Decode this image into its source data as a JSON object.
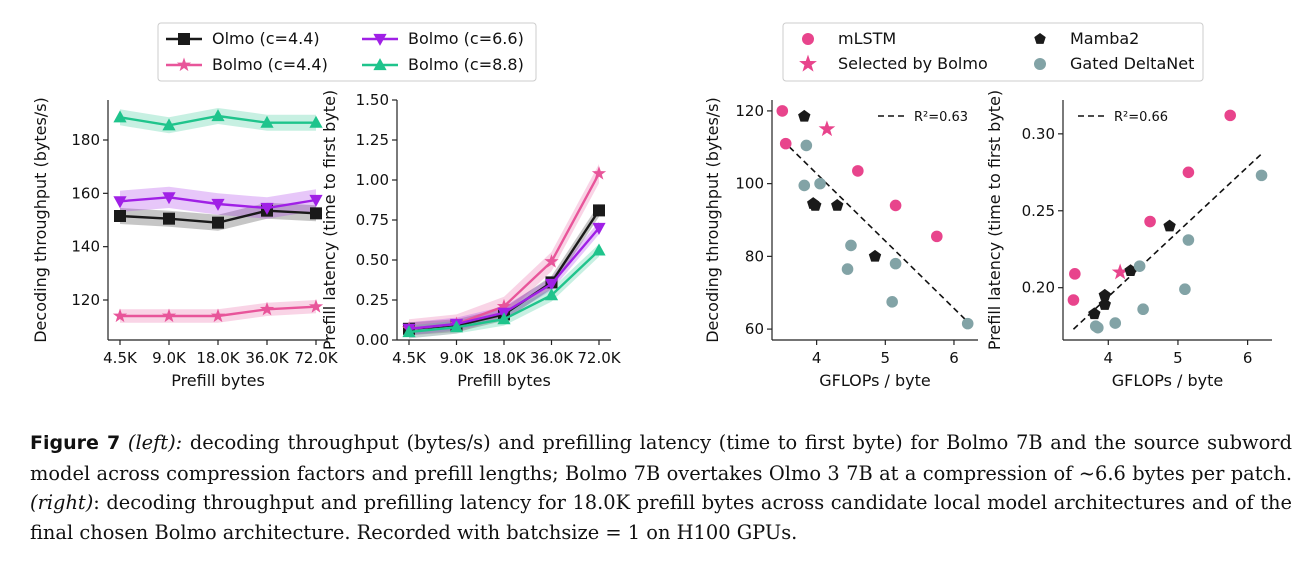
{
  "caption": {
    "label": "Figure 7",
    "left_tag": "(left):",
    "text1": " decoding throughput (bytes/s) and prefilling latency (time to first byte) for Bolmo 7B and the source subword model across compression factors and prefill lengths; Bolmo 7B overtakes Olmo 3 7B at a compression of ~6.6 bytes per patch. ",
    "right_tag": "(right)",
    "text2": ": decoding throughput and prefilling latency for 18.0K prefill bytes across candidate local model architectures and of the final chosen Bolmo architecture. Recorded with batchsize = 1 on H100 GPUs."
  },
  "colors": {
    "olmo": "#1a1a1a",
    "bolmo44": "#e8559a",
    "bolmo66": "#a020e6",
    "bolmo88": "#1fc48c",
    "mlstm": "#e8448c",
    "mamba2": "#1a1a1a",
    "gated": "#82a3a6"
  },
  "chart_data": [
    {
      "id": "throughput",
      "type": "line",
      "title": "",
      "xlabel": "Prefill bytes",
      "ylabel": "Decoding throughput (bytes/s)",
      "categories": [
        "4.5K",
        "9.0K",
        "18.0K",
        "36.0K",
        "72.0K"
      ],
      "ylim": [
        105,
        195
      ],
      "yticks": [
        120,
        140,
        160,
        180
      ],
      "legend": "top (shared with latency panel)",
      "series": [
        {
          "key": "olmo",
          "name": "Olmo (c=4.4)",
          "marker": "square",
          "values": [
            151.5,
            150.5,
            149,
            153.5,
            152.5
          ],
          "band": 3
        },
        {
          "key": "bolmo44",
          "name": "Bolmo (c=4.4)",
          "marker": "star",
          "values": [
            114,
            114,
            114,
            116.5,
            117.5
          ],
          "band": 2.5
        },
        {
          "key": "bolmo66",
          "name": "Bolmo (c=6.6)",
          "marker": "tri_down",
          "values": [
            157,
            158.5,
            156,
            154.5,
            157.5
          ],
          "band": 4
        },
        {
          "key": "bolmo88",
          "name": "Bolmo (c=8.8)",
          "marker": "tri_up",
          "values": [
            188.5,
            185.5,
            189,
            186.5,
            186.5
          ],
          "band": 3
        }
      ]
    },
    {
      "id": "latency",
      "type": "line",
      "xlabel": "Prefill bytes",
      "ylabel": "Prefill latency (time to first byte)",
      "categories": [
        "4.5K",
        "9.0K",
        "18.0K",
        "36.0K",
        "72.0K"
      ],
      "ylim": [
        0,
        1.5
      ],
      "yticks": [
        0.0,
        0.25,
        0.5,
        0.75,
        1.0,
        1.25,
        1.5
      ],
      "series": [
        {
          "key": "olmo",
          "name": "Olmo (c=4.4)",
          "marker": "square",
          "values": [
            0.07,
            0.09,
            0.16,
            0.36,
            0.81
          ],
          "band": 0.04
        },
        {
          "key": "bolmo44",
          "name": "Bolmo (c=4.4)",
          "marker": "star",
          "values": [
            0.07,
            0.1,
            0.21,
            0.49,
            1.04
          ],
          "band": 0.06
        },
        {
          "key": "bolmo66",
          "name": "Bolmo (c=6.6)",
          "marker": "tri_down",
          "values": [
            0.07,
            0.1,
            0.17,
            0.35,
            0.7
          ],
          "band": 0.04
        },
        {
          "key": "bolmo88",
          "name": "Bolmo (c=8.8)",
          "marker": "tri_up",
          "values": [
            0.05,
            0.08,
            0.13,
            0.28,
            0.56
          ],
          "band": 0.04
        }
      ]
    },
    {
      "id": "scatter_throughput",
      "type": "scatter",
      "xlabel": "GFLOPs / byte",
      "ylabel": "Decoding throughput (bytes/s)",
      "xlim": [
        3.35,
        6.35
      ],
      "ylim": [
        57,
        123
      ],
      "xticks": [
        4,
        5,
        6
      ],
      "yticks": [
        60,
        80,
        100,
        120
      ],
      "legend": "top",
      "r2_label": "R²=0.63",
      "fit": [
        [
          3.5,
          112
        ],
        [
          6.2,
          62
        ]
      ],
      "series": [
        {
          "key": "mlstm",
          "name": "mLSTM",
          "marker": "circle",
          "points": [
            [
              3.5,
              120
            ],
            [
              3.55,
              111
            ],
            [
              4.6,
              103.5
            ],
            [
              5.15,
              94
            ],
            [
              5.75,
              85.5
            ]
          ]
        },
        {
          "key": "selected",
          "name": "Selected by Bolmo",
          "marker": "star",
          "points": [
            [
              4.15,
              115
            ]
          ]
        },
        {
          "key": "mamba2",
          "name": "Mamba2",
          "marker": "pentagon",
          "points": [
            [
              3.82,
              118.5
            ],
            [
              3.95,
              94.5
            ],
            [
              3.98,
              94
            ],
            [
              4.3,
              94
            ],
            [
              4.85,
              80
            ]
          ]
        },
        {
          "key": "gated",
          "name": "Gated DeltaNet",
          "marker": "circle",
          "points": [
            [
              3.85,
              110.5
            ],
            [
              3.82,
              99.5
            ],
            [
              4.05,
              100
            ],
            [
              4.5,
              83
            ],
            [
              4.45,
              76.5
            ],
            [
              5.15,
              78
            ],
            [
              5.1,
              67.5
            ],
            [
              6.2,
              61.5
            ]
          ]
        }
      ]
    },
    {
      "id": "scatter_latency",
      "type": "scatter",
      "xlabel": "GFLOPs / byte",
      "ylabel": "Prefill latency (time to first byte)",
      "xlim": [
        3.35,
        6.35
      ],
      "ylim": [
        0.166,
        0.322
      ],
      "xticks": [
        4,
        5,
        6
      ],
      "yticks": [
        0.2,
        0.25,
        0.3
      ],
      "r2_label": "R²=0.66",
      "fit": [
        [
          3.5,
          0.173
        ],
        [
          6.2,
          0.287
        ]
      ],
      "series": [
        {
          "key": "mlstm",
          "name": "mLSTM",
          "marker": "circle",
          "points": [
            [
              3.52,
              0.209
            ],
            [
              3.5,
              0.192
            ],
            [
              4.6,
              0.243
            ],
            [
              5.15,
              0.275
            ],
            [
              5.75,
              0.312
            ]
          ]
        },
        {
          "key": "selected",
          "name": "Selected by Bolmo",
          "marker": "star",
          "points": [
            [
              4.17,
              0.21
            ]
          ]
        },
        {
          "key": "mamba2",
          "name": "Mamba2",
          "marker": "pentagon",
          "points": [
            [
              3.8,
              0.183
            ],
            [
              3.95,
              0.195
            ],
            [
              3.95,
              0.189
            ],
            [
              4.32,
              0.211
            ],
            [
              4.88,
              0.24
            ]
          ]
        },
        {
          "key": "gated",
          "name": "Gated DeltaNet",
          "marker": "circle",
          "points": [
            [
              3.85,
              0.174
            ],
            [
              3.82,
              0.175
            ],
            [
              4.1,
              0.177
            ],
            [
              4.45,
              0.214
            ],
            [
              4.5,
              0.186
            ],
            [
              5.15,
              0.231
            ],
            [
              5.1,
              0.199
            ],
            [
              6.2,
              0.273
            ]
          ]
        }
      ]
    }
  ]
}
